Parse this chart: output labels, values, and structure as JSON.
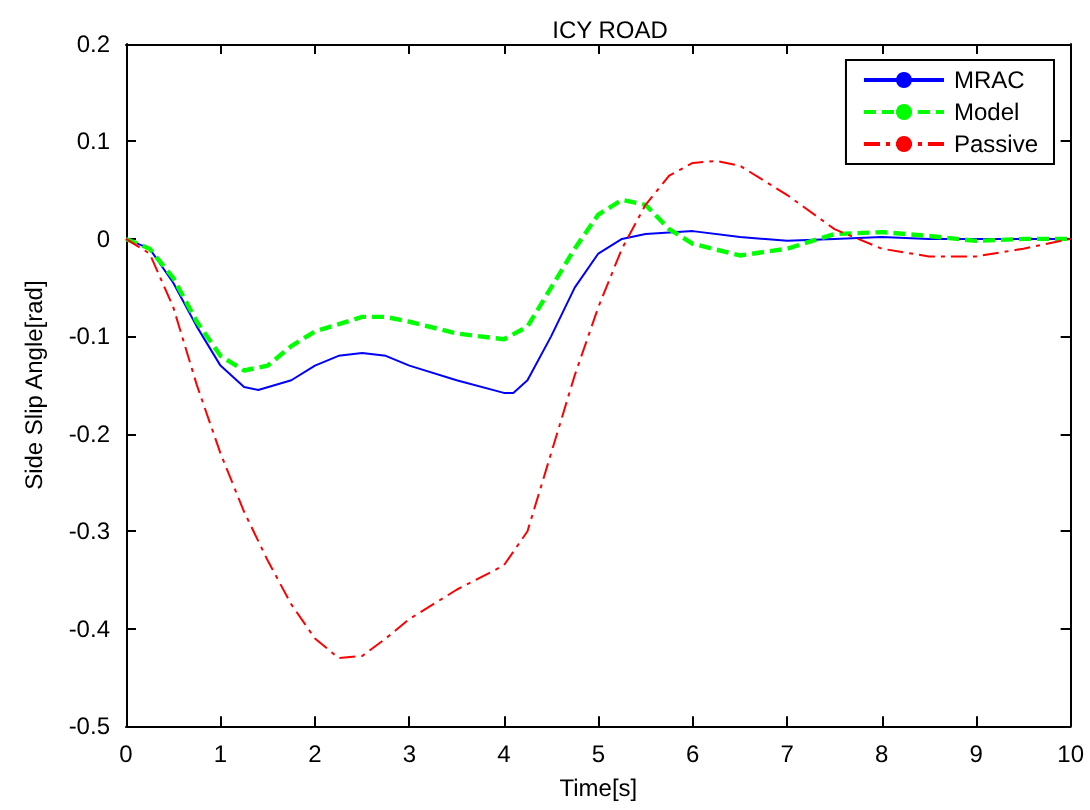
{
  "chart_data": {
    "type": "line",
    "title": "ICY ROAD",
    "xlabel": "Time[s]",
    "ylabel": "Side Slip Angle[rad]",
    "xlim": [
      0,
      10
    ],
    "xticks": [
      0,
      1,
      2,
      3,
      4,
      5,
      6,
      7,
      8,
      9,
      10
    ],
    "ylim": [
      -0.5,
      0.2
    ],
    "yticks": [
      -0.5,
      -0.4,
      -0.3,
      -0.2,
      -0.1,
      0,
      0.1,
      0.2
    ],
    "grid": false,
    "legend": "top right",
    "marker": "none",
    "series": [
      {
        "name": "MRAC",
        "color": "#0000ff",
        "line_style": "solid",
        "x": [
          0,
          0.25,
          0.5,
          0.75,
          1,
          1.25,
          1.4,
          1.75,
          2,
          2.25,
          2.5,
          2.75,
          3,
          3.5,
          4,
          4.1,
          4.25,
          4.5,
          4.75,
          5,
          5.25,
          5.5,
          6,
          6.5,
          7,
          7.5,
          8,
          8.5,
          9,
          9.5,
          10
        ],
        "values": [
          0,
          -0.01,
          -0.045,
          -0.09,
          -0.13,
          -0.152,
          -0.155,
          -0.145,
          -0.13,
          -0.12,
          -0.117,
          -0.12,
          -0.13,
          -0.145,
          -0.158,
          -0.158,
          -0.145,
          -0.1,
          -0.05,
          -0.015,
          0,
          0.005,
          0.008,
          0.002,
          -0.002,
          0,
          0.002,
          0,
          0,
          0,
          0
        ]
      },
      {
        "name": "Model",
        "color": "#00ff00",
        "line_style": "dashed",
        "x": [
          0,
          0.25,
          0.5,
          0.75,
          1,
          1.25,
          1.5,
          1.75,
          2,
          2.5,
          2.75,
          3,
          3.5,
          4,
          4.25,
          4.5,
          4.75,
          5,
          5.25,
          5.5,
          5.75,
          6,
          6.5,
          7,
          7.5,
          8,
          8.5,
          9,
          9.5,
          10
        ],
        "values": [
          0,
          -0.01,
          -0.04,
          -0.085,
          -0.12,
          -0.135,
          -0.13,
          -0.11,
          -0.095,
          -0.08,
          -0.08,
          -0.085,
          -0.097,
          -0.103,
          -0.09,
          -0.05,
          -0.01,
          0.025,
          0.04,
          0.035,
          0.01,
          -0.005,
          -0.017,
          -0.01,
          0.005,
          0.007,
          0.003,
          -0.002,
          0,
          0
        ]
      },
      {
        "name": "Passive",
        "color": "#ff0000",
        "line_style": "dashdot",
        "x": [
          0,
          0.25,
          0.5,
          0.75,
          1,
          1.25,
          1.5,
          1.75,
          2,
          2.25,
          2.5,
          2.75,
          3,
          3.5,
          4,
          4.25,
          4.5,
          4.75,
          5,
          5.25,
          5.5,
          5.75,
          6,
          6.25,
          6.5,
          7,
          7.5,
          8,
          8.5,
          9,
          9.5,
          10
        ],
        "values": [
          0,
          -0.015,
          -0.07,
          -0.15,
          -0.22,
          -0.28,
          -0.33,
          -0.375,
          -0.41,
          -0.43,
          -0.428,
          -0.41,
          -0.39,
          -0.36,
          -0.335,
          -0.3,
          -0.22,
          -0.14,
          -0.07,
          -0.01,
          0.035,
          0.065,
          0.078,
          0.08,
          0.075,
          0.045,
          0.01,
          -0.01,
          -0.018,
          -0.018,
          -0.01,
          0
        ]
      }
    ]
  }
}
